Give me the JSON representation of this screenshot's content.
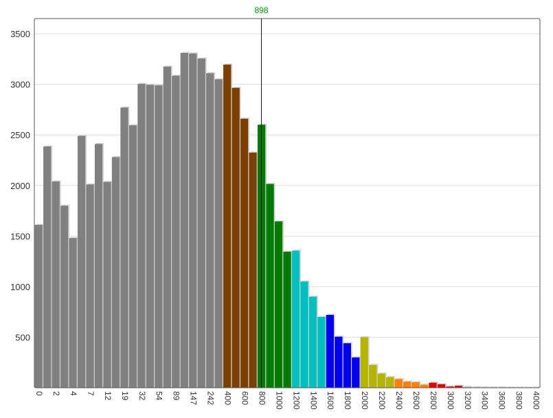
{
  "chart_data": {
    "type": "bar",
    "title": "",
    "xlabel": "",
    "ylabel": "",
    "ylim": [
      0,
      3650
    ],
    "yticks": [
      500,
      1000,
      1500,
      2000,
      2500,
      3000,
      3500
    ],
    "grid": "horizontal",
    "legend": "none",
    "marker": {
      "label": "898",
      "after_bar_index": 26,
      "color": "#0a8a0a"
    },
    "bars": [
      {
        "label": "0",
        "value": 1610,
        "color": "#808080"
      },
      {
        "label": "",
        "value": 2385,
        "color": "#808080"
      },
      {
        "label": "2",
        "value": 2040,
        "color": "#808080"
      },
      {
        "label": "",
        "value": 1800,
        "color": "#808080"
      },
      {
        "label": "4",
        "value": 1480,
        "color": "#808080"
      },
      {
        "label": "",
        "value": 2490,
        "color": "#808080"
      },
      {
        "label": "7",
        "value": 2010,
        "color": "#808080"
      },
      {
        "label": "",
        "value": 2410,
        "color": "#808080"
      },
      {
        "label": "12",
        "value": 2035,
        "color": "#808080"
      },
      {
        "label": "",
        "value": 2280,
        "color": "#808080"
      },
      {
        "label": "19",
        "value": 2770,
        "color": "#808080"
      },
      {
        "label": "",
        "value": 2595,
        "color": "#808080"
      },
      {
        "label": "32",
        "value": 3005,
        "color": "#808080"
      },
      {
        "label": "",
        "value": 2995,
        "color": "#808080"
      },
      {
        "label": "54",
        "value": 2990,
        "color": "#808080"
      },
      {
        "label": "",
        "value": 3175,
        "color": "#808080"
      },
      {
        "label": "89",
        "value": 3085,
        "color": "#808080"
      },
      {
        "label": "",
        "value": 3310,
        "color": "#808080"
      },
      {
        "label": "147",
        "value": 3305,
        "color": "#808080"
      },
      {
        "label": "",
        "value": 3255,
        "color": "#808080"
      },
      {
        "label": "242",
        "value": 3110,
        "color": "#808080"
      },
      {
        "label": "",
        "value": 3050,
        "color": "#808080"
      },
      {
        "label": "400",
        "value": 3195,
        "color": "#7b3f00"
      },
      {
        "label": "",
        "value": 2965,
        "color": "#7b3f00"
      },
      {
        "label": "600",
        "value": 2660,
        "color": "#7b3f00"
      },
      {
        "label": "",
        "value": 2325,
        "color": "#7b3f00"
      },
      {
        "label": "800",
        "value": 2600,
        "color": "#007a00"
      },
      {
        "label": "",
        "value": 2015,
        "color": "#007a00"
      },
      {
        "label": "1000",
        "value": 1645,
        "color": "#007a00"
      },
      {
        "label": "",
        "value": 1345,
        "color": "#007a00"
      },
      {
        "label": "1200",
        "value": 1355,
        "color": "#00bfbf"
      },
      {
        "label": "",
        "value": 1050,
        "color": "#00bfbf"
      },
      {
        "label": "1400",
        "value": 900,
        "color": "#00bfbf"
      },
      {
        "label": "",
        "value": 700,
        "color": "#00bfbf"
      },
      {
        "label": "1600",
        "value": 720,
        "color": "#0000ee"
      },
      {
        "label": "",
        "value": 505,
        "color": "#0000ee"
      },
      {
        "label": "1800",
        "value": 440,
        "color": "#0000ee"
      },
      {
        "label": "",
        "value": 300,
        "color": "#0000ee"
      },
      {
        "label": "2000",
        "value": 500,
        "color": "#b5b500"
      },
      {
        "label": "",
        "value": 225,
        "color": "#b5b500"
      },
      {
        "label": "2200",
        "value": 140,
        "color": "#b5b500"
      },
      {
        "label": "",
        "value": 105,
        "color": "#b5b500"
      },
      {
        "label": "2400",
        "value": 85,
        "color": "#ff8000"
      },
      {
        "label": "",
        "value": 60,
        "color": "#ff8000"
      },
      {
        "label": "2600",
        "value": 55,
        "color": "#ff8000"
      },
      {
        "label": "",
        "value": 30,
        "color": "#ff8000"
      },
      {
        "label": "2800",
        "value": 50,
        "color": "#e00000"
      },
      {
        "label": "",
        "value": 35,
        "color": "#e00000"
      },
      {
        "label": "3000",
        "value": 12,
        "color": "#e00000"
      },
      {
        "label": "",
        "value": 20,
        "color": "#e00000"
      },
      {
        "label": "3200",
        "value": 8,
        "color": "#aaaaaa"
      },
      {
        "label": "",
        "value": 5,
        "color": "#aaaaaa"
      },
      {
        "label": "3400",
        "value": 4,
        "color": "#aaaaaa"
      },
      {
        "label": "",
        "value": 3,
        "color": "#aaaaaa"
      },
      {
        "label": "3600",
        "value": 3,
        "color": "#aaaaaa"
      },
      {
        "label": "",
        "value": 2,
        "color": "#aaaaaa"
      },
      {
        "label": "3800",
        "value": 2,
        "color": "#aaaaaa"
      },
      {
        "label": "",
        "value": 1,
        "color": "#aaaaaa"
      },
      {
        "label": "4000",
        "value": 1,
        "color": "#aaaaaa"
      }
    ]
  }
}
